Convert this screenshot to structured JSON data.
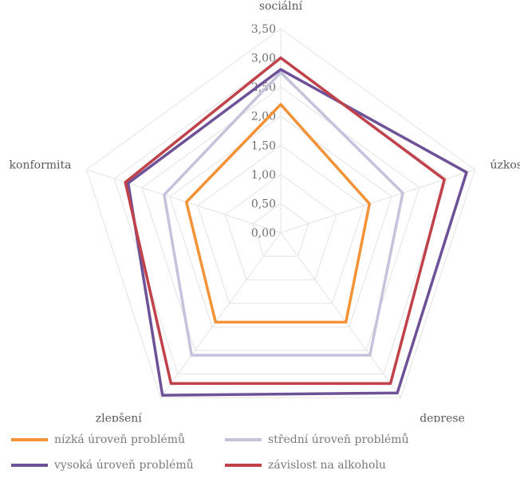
{
  "chart_data": {
    "type": "radar",
    "categories": [
      "sociální",
      "úzkost",
      "deprese",
      "zlepšení",
      "konformita"
    ],
    "rlim": [
      0,
      3.5
    ],
    "ticks": [
      "0,00",
      "0,50",
      "1,00",
      "1,50",
      "2,00",
      "2,50",
      "3,00",
      "3,50"
    ],
    "grid": true,
    "legend_position": "bottom",
    "series": [
      {
        "name": "nízká úroveň problémů",
        "color": "#F39237",
        "values": [
          2.2,
          1.6,
          1.9,
          1.9,
          1.7
        ]
      },
      {
        "name": "střední úroveň problémů",
        "color": "#C5C3DB",
        "values": [
          2.75,
          2.2,
          2.6,
          2.6,
          2.1
        ]
      },
      {
        "name": "vysoká úroveň problémů",
        "color": "#6E5298",
        "values": [
          2.8,
          3.35,
          3.4,
          3.45,
          2.75
        ]
      },
      {
        "name": "závislost na alkoholu",
        "color": "#C0414A",
        "values": [
          3.0,
          2.95,
          3.2,
          3.2,
          2.8
        ]
      }
    ]
  }
}
